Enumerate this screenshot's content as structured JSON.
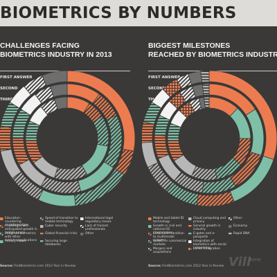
{
  "header": {
    "title": "BIOMETRICS BY NUMBERS"
  },
  "colors": {
    "orange": "#ec7c50",
    "teal": "#7fbfa8",
    "grey": "#b7b7b7",
    "white": "#f3f3f3",
    "dark_grey": "#6e6e6e",
    "background": "#3a3937"
  },
  "left": {
    "title_line1": "CHALLENGES FACING",
    "title_line2": "BIOMETRICS INDUSTRY IN 2013",
    "ring_labels": [
      "FIRST ANSWER",
      "SECOND",
      "THIRD"
    ],
    "legend": [
      {
        "label": "Education - countering misinformation",
        "color": "#ec7c50",
        "pattern": "solid"
      },
      {
        "label": "Challenges with anticipated growth in mobile space",
        "color": "#ec7c50",
        "pattern": "hatch"
      },
      {
        "label": "Integrate biometrics with other systems/applications",
        "color": "#7fbfa8",
        "pattern": "hatch"
      },
      {
        "label": "Privacy issues",
        "color": "#7fbfa8",
        "pattern": "solid"
      },
      {
        "label": "Speed of transition to mobile technology",
        "color": "#b7b7b7",
        "pattern": "hatch"
      },
      {
        "label": "Cyber security",
        "color": "#b7b7b7",
        "pattern": "solid"
      },
      {
        "label": "Global financial crisis",
        "color": "#ec7c50",
        "pattern": "stripe"
      },
      {
        "label": "Securing large databases",
        "color": "#7fbfa8",
        "pattern": "stripe"
      },
      {
        "label": "International legal regulatory issues",
        "color": "#f3f3f3",
        "pattern": "solid"
      },
      {
        "label": "Lack of trained professionals",
        "color": "#f3f3f3",
        "pattern": "hatch"
      },
      {
        "label": "Other",
        "color": "#6e6e6e",
        "pattern": "solid"
      }
    ],
    "source": "FindBiometrics.com 2012 Year in Review"
  },
  "right": {
    "title_line1": "BIGGEST MILESTONES",
    "title_line2": "REACHED BY BIOMETRICS INDUSTRY",
    "ring_labels": [
      "FIRST ANSWER",
      "SECOND",
      "THIRD"
    ],
    "legend": [
      {
        "label": "Mobile and tablet ID technology",
        "color": "#ec7c50",
        "pattern": "solid"
      },
      {
        "label": "Growth in civil and national ID programmes",
        "color": "#7fbfa8",
        "pattern": "solid"
      },
      {
        "label": "Continued transition to multimodal systems",
        "color": "#ec7c50",
        "pattern": "hatch"
      },
      {
        "label": "Growth in commercial markets",
        "color": "#7fbfa8",
        "pattern": "hatch"
      },
      {
        "label": "Mergers and acquisitions",
        "color": "#b7b7b7",
        "pattern": "hatch"
      },
      {
        "label": "Cloud computing and privacy",
        "color": "#b7b7b7",
        "pattern": "solid"
      },
      {
        "label": "General growth in industry",
        "color": "#ec7c50",
        "pattern": "stripe"
      },
      {
        "label": "E-gates and e-passports",
        "color": "#7fbfa8",
        "pattern": "stripe"
      },
      {
        "label": "Integration of biometrics with social networking",
        "color": "#f3f3f3",
        "pattern": "solid"
      },
      {
        "label": "Easier integration",
        "color": "#ec7c50",
        "pattern": "grid"
      },
      {
        "label": "Other",
        "color": "#f3f3f3",
        "pattern": "hatch"
      },
      {
        "label": "Economy",
        "color": "#6e6e6e",
        "pattern": "solid"
      },
      {
        "label": "Rapid DNA",
        "color": "#b7b7b7",
        "pattern": "stripe"
      }
    ],
    "source": "FindBiometrics.com 2012 Year in Review"
  },
  "source_prefix": "Source:",
  "watermark": {
    "text": "Vill",
    "sub": "zone"
  },
  "chart_data": [
    {
      "type": "pie",
      "title": "CHALLENGES FACING BIOMETRICS INDUSTRY IN 2013",
      "categories": [
        "Education - countering misinformation",
        "Challenges with anticipated growth in mobile space",
        "Integrate biometrics with other systems/applications",
        "Privacy issues",
        "Speed of transition to mobile technology",
        "Cyber security",
        "Global financial crisis",
        "Securing large databases",
        "International legal regulatory issues",
        "Lack of trained professionals",
        "Other"
      ],
      "series": [
        {
          "name": "FIRST ANSWER",
          "values": [
            28,
            6,
            14,
            9,
            8,
            7,
            6,
            6,
            5,
            5,
            6
          ]
        },
        {
          "name": "SECOND",
          "values": [
            10,
            8,
            16,
            12,
            12,
            9,
            8,
            9,
            6,
            5,
            5
          ]
        },
        {
          "name": "THIRD",
          "values": [
            9,
            7,
            12,
            14,
            13,
            10,
            9,
            8,
            7,
            6,
            5
          ]
        }
      ],
      "legend_position": "bottom"
    },
    {
      "type": "pie",
      "title": "BIGGEST MILESTONES REACHED BY BIOMETRICS INDUSTRY",
      "categories": [
        "Mobile and tablet ID technology",
        "Growth in civil and national ID programmes",
        "Continued transition to multimodal systems",
        "Growth in commercial markets",
        "Mergers and acquisitions",
        "Cloud computing and privacy",
        "General growth in industry",
        "E-gates and e-passports",
        "Integration of biometrics with social networking",
        "Easier integration",
        "Other",
        "Economy",
        "Rapid DNA"
      ],
      "series": [
        {
          "name": "FIRST ANSWER",
          "values": [
            30,
            14,
            9,
            8,
            7,
            6,
            5,
            5,
            4,
            4,
            3,
            3,
            2
          ]
        },
        {
          "name": "SECOND",
          "values": [
            16,
            14,
            12,
            10,
            9,
            8,
            7,
            6,
            5,
            4,
            4,
            3,
            2
          ]
        },
        {
          "name": "THIRD",
          "values": [
            12,
            13,
            11,
            11,
            10,
            9,
            8,
            7,
            6,
            5,
            4,
            2,
            2
          ]
        }
      ],
      "legend_position": "bottom"
    }
  ]
}
